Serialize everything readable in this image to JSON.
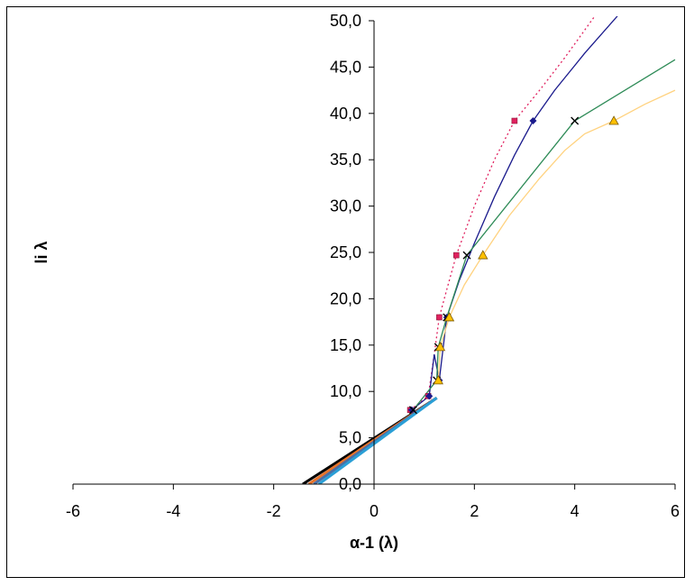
{
  "chart_data": {
    "type": "scatter",
    "title": "",
    "xlabel": "α-1 (λ)",
    "ylabel": "li λ",
    "xlim": [
      -6,
      6
    ],
    "ylim": [
      0,
      50
    ],
    "x_ticks": [
      "-6",
      "-4",
      "-2",
      "0",
      "2",
      "4",
      "6"
    ],
    "y_ticks": [
      "0,0",
      "5,0",
      "10,0",
      "15,0",
      "20,0",
      "25,0",
      "30,0",
      "35,0",
      "40,0",
      "45,0",
      "50,0"
    ],
    "grid": false,
    "legend": "none",
    "series": [
      {
        "color": "#e0215f",
        "line_style": "dotted",
        "marker": "square",
        "x": [
          0.72,
          1.08,
          1.3,
          1.64,
          2.8
        ],
        "y": [
          8.0,
          9.5,
          18.0,
          24.7,
          39.2
        ],
        "curve_x": [
          0.72,
          1.08,
          1.2,
          1.3,
          1.45,
          1.64,
          2.0,
          2.4,
          2.8,
          3.3,
          3.8,
          4.4
        ],
        "curve_y": [
          8.0,
          9.5,
          14.0,
          18.0,
          21.0,
          24.7,
          30.0,
          35.0,
          39.2,
          42.5,
          46.0,
          50.5
        ]
      },
      {
        "color": "#1a1a8c",
        "line_style": "solid",
        "marker": "diamond",
        "x": [
          0.75,
          1.1,
          1.3,
          1.45,
          3.17
        ],
        "y": [
          8.0,
          9.5,
          11.2,
          18.0,
          39.2
        ],
        "curve_x": [
          0.75,
          1.1,
          1.2,
          1.3,
          1.45,
          1.7,
          2.0,
          2.4,
          2.8,
          3.17,
          3.6,
          4.2,
          4.85
        ],
        "curve_y": [
          8.0,
          9.5,
          14.0,
          11.2,
          18.0,
          22.0,
          26.0,
          31.0,
          35.5,
          39.2,
          42.5,
          46.5,
          50.5
        ]
      },
      {
        "color": "#2e8b57",
        "line_style": "solid",
        "marker": "x",
        "x": [
          0.78,
          1.25,
          1.28,
          1.45,
          1.85,
          4.0
        ],
        "y": [
          8.0,
          11.2,
          14.8,
          18.0,
          24.7,
          39.2
        ],
        "curve_x": [
          0.78,
          1.25,
          1.28,
          1.45,
          1.85,
          4.0,
          6.0
        ],
        "curve_y": [
          8.0,
          11.2,
          14.8,
          18.0,
          24.7,
          39.2,
          45.8
        ]
      },
      {
        "color": "#ffd27f",
        "line_style": "solid",
        "marker": "triangle",
        "x": [
          1.28,
          1.32,
          1.5,
          2.17,
          4.78
        ],
        "y": [
          11.2,
          14.8,
          18.0,
          24.7,
          39.2
        ],
        "curve_x": [
          1.28,
          1.32,
          1.5,
          1.8,
          2.17,
          2.7,
          3.3,
          3.8,
          4.2,
          4.78,
          5.4,
          6.0
        ],
        "curve_y": [
          11.2,
          14.8,
          18.0,
          21.5,
          24.7,
          29.0,
          33.0,
          36.0,
          37.8,
          39.2,
          41.0,
          42.5
        ]
      }
    ],
    "fit_lines": [
      {
        "color": "#000000",
        "x": [
          -1.42,
          1.25
        ],
        "y": [
          0.0,
          9.3
        ]
      },
      {
        "color": "#e8732a",
        "x": [
          -1.3,
          1.25
        ],
        "y": [
          0.0,
          9.3
        ]
      },
      {
        "color": "#4a6fa5",
        "x": [
          -1.2,
          1.25
        ],
        "y": [
          0.0,
          9.3
        ]
      },
      {
        "color": "#2a9fd6",
        "x": [
          -1.1,
          1.25
        ],
        "y": [
          0.0,
          9.3
        ]
      }
    ]
  }
}
